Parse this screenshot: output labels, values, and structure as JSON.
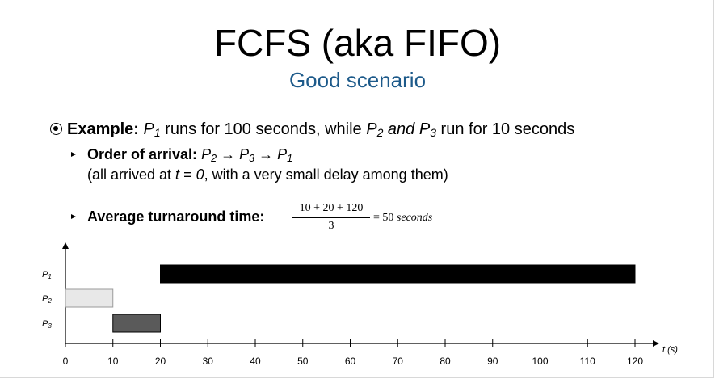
{
  "slide": {
    "title": "FCFS (aka FIFO)",
    "subtitle": "Good scenario"
  },
  "example": {
    "label": "Example:",
    "p1": "P",
    "p1_sub": "1",
    "text_a": " runs for 100 seconds, while ",
    "p2": "P",
    "p2_sub": "2",
    "and_text": " and ",
    "p3": "P",
    "p3_sub": "3",
    "text_b": " run for 10 seconds"
  },
  "order": {
    "label": "Order of arrival:",
    "arrow": " → ",
    "note_a": "(all arrived at ",
    "note_t": "t",
    "note_b": " = ",
    "note_zero": "0",
    "note_c": ", with a very small delay among them)"
  },
  "turnaround": {
    "label": "Average turnaround time:",
    "numerator": "10 + 20 + 120",
    "denominator": "3",
    "result": "= 50 ",
    "unit": "seconds"
  },
  "chart_data": {
    "type": "gantt",
    "xlabel": "t (s)",
    "xlim": [
      0,
      120
    ],
    "x_ticks": [
      0,
      10,
      20,
      30,
      40,
      50,
      60,
      70,
      80,
      90,
      100,
      110,
      120
    ],
    "rows": [
      {
        "name": "P",
        "sub": "1",
        "start": 20,
        "end": 120,
        "color": "#000000"
      },
      {
        "name": "P",
        "sub": "2",
        "start": 0,
        "end": 10,
        "color": "#e8e8e8"
      },
      {
        "name": "P",
        "sub": "3",
        "start": 10,
        "end": 20,
        "color": "#5a5a5a"
      }
    ]
  }
}
